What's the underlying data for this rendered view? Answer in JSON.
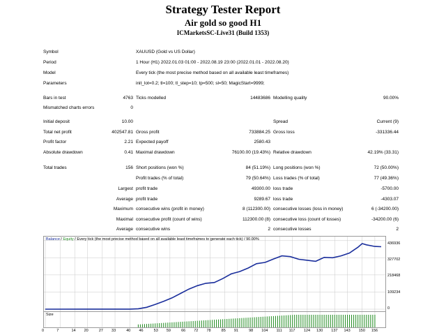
{
  "header": {
    "title": "Strategy Tester Report",
    "subtitle": "Air gold so good H1",
    "server": "ICMarketsSC-Live31 (Build 1353)"
  },
  "settings": [
    {
      "label": "Symbol",
      "value": "XAUUSD (Gold vs US Dollar)"
    },
    {
      "label": "Period",
      "value": "1 Hour (H1) 2022.01.03 01:00 - 2022.08.19 23:00 (2022.01.01 - 2022.08.20)"
    },
    {
      "label": "Model",
      "value": "Every tick (the most precise method based on all available least timeframes)"
    },
    {
      "label": "Parameters",
      "value": "init_lot=0.2; tl=100; tl_step=10; tp=500; sl=50; MagicStart=9999;"
    }
  ],
  "bars": {
    "bars_label": "Bars in test",
    "bars_value": "4763",
    "ticks_label": "Ticks modelled",
    "ticks_value": "14483686",
    "quality_label": "Modelling quality",
    "quality_value": "90.00%",
    "mismatch_label": "Mismatched charts errors",
    "mismatch_value": "0"
  },
  "results": {
    "deposit_label": "Initial deposit",
    "deposit_value": "10.00",
    "spread_label": "Spread",
    "spread_value": "Current (9)",
    "netprofit_label": "Total net profit",
    "netprofit_value": "402547.81",
    "grossprofit_label": "Gross profit",
    "grossprofit_value": "733884.25",
    "grossloss_label": "Gross loss",
    "grossloss_value": "-331336.44",
    "pf_label": "Profit factor",
    "pf_value": "2.21",
    "payoff_label": "Expected payoff",
    "payoff_value": "2580.43",
    "absdd_label": "Absolute drawdown",
    "absdd_value": "0.41",
    "maxdd_label": "Maximal drawdown",
    "maxdd_value": "76100.00 (19.43%)",
    "reldd_label": "Relative drawdown",
    "reldd_value": "42.19% (33.31)"
  },
  "trades": {
    "total_label": "Total trades",
    "total_value": "156",
    "short_label": "Short positions (won %)",
    "short_value": "84 (51.19%)",
    "long_label": "Long positions (won %)",
    "long_value": "72 (50.00%)",
    "profit_trades_label": "Profit trades (% of total)",
    "profit_trades_value": "79 (50.64%)",
    "loss_trades_label": "Loss trades (% of total)",
    "loss_trades_value": "77 (49.36%)",
    "largest_label": "Largest",
    "largest_profit_label": "profit trade",
    "largest_profit_value": "49300.00",
    "largest_loss_label": "loss trade",
    "largest_loss_value": "-5700.00",
    "average_label": "Average",
    "average_profit_label": "profit trade",
    "average_profit_value": "9289.67",
    "average_loss_label": "loss trade",
    "average_loss_value": "-4303.07",
    "maximum_label": "Maximum",
    "max_wins_label": "consecutive wins (profit in money)",
    "max_wins_value": "8 (112300.00)",
    "max_losses_label": "consecutive losses (loss in money)",
    "max_losses_value": "6 (-34200.00)",
    "maximal_label": "Maximal",
    "maximal_profit_label": "consecutive profit (count of wins)",
    "maximal_profit_value": "112300.00 (8)",
    "maximal_loss_label": "consecutive loss (count of losses)",
    "maximal_loss_value": "-34200.00 (6)",
    "avg2_label": "Average",
    "avg_wins_label": "consecutive wins",
    "avg_wins_value": "2",
    "avg_losses_label": "consecutive losses",
    "avg_losses_value": "2"
  },
  "chart_legend": {
    "balance": "Balance",
    "sep": " / ",
    "equity": "Equity",
    "rest": " / Every tick (the most precise method based on all available least timeframes to generate each tick) / 90.00%"
  },
  "colors": {
    "balance": "#1a2e9c",
    "equity": "#1f8a1f",
    "grid": "#c8c8c8"
  },
  "chart_data": {
    "type": "line",
    "title": "",
    "xlabel": "",
    "ylabel": "",
    "ylim": [
      0,
      436000
    ],
    "y_ticks": [
      0,
      109234,
      218468,
      327702,
      436936
    ],
    "y_tick_labels": [
      "0",
      "109234",
      "218468",
      "327702",
      "436936"
    ],
    "x_ticks": [
      0,
      7,
      14,
      20,
      27,
      33,
      40,
      46,
      53,
      59,
      66,
      72,
      78,
      85,
      91,
      98,
      104,
      111,
      117,
      124,
      130,
      137,
      143,
      150,
      156
    ],
    "x_tick_labels": [
      "0",
      "7",
      "14",
      "20",
      "27",
      "33",
      "40",
      "46",
      "53",
      "59",
      "66",
      "72",
      "78",
      "85",
      "91",
      "98",
      "104",
      "111",
      "117",
      "124",
      "130",
      "137",
      "143",
      "150",
      "156"
    ],
    "xlim": [
      0,
      159
    ],
    "series": [
      {
        "name": "Balance",
        "x": [
          0,
          40,
          44,
          48,
          52,
          56,
          60,
          64,
          68,
          72,
          76,
          80,
          84,
          88,
          92,
          96,
          100,
          104,
          108,
          112,
          116,
          120,
          124,
          128,
          132,
          136,
          140,
          144,
          148,
          150,
          152,
          156,
          159
        ],
        "y": [
          0,
          500,
          2500,
          12000,
          30000,
          50000,
          72000,
          100000,
          128000,
          150000,
          165000,
          170000,
          195000,
          225000,
          240000,
          262000,
          290000,
          298000,
          320000,
          340000,
          335000,
          318000,
          312000,
          305000,
          330000,
          328000,
          340000,
          358000,
          395000,
          418000,
          410000,
          400000,
          398000
        ]
      }
    ],
    "size_series": {
      "name": "Size",
      "x_start": 44,
      "x_end": 156
    }
  }
}
